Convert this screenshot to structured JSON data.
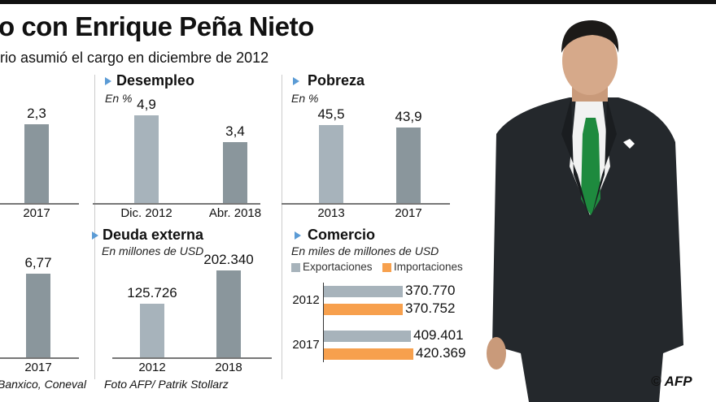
{
  "header": {
    "title": "o con Enrique Peña Nieto",
    "subtitle": "rio asumió el cargo en diciembre de 2012"
  },
  "colors": {
    "bar_light": "#a7b3bb",
    "bar_dark": "#8a969c",
    "export": "#a7b3bb",
    "import": "#f7a04d",
    "triangle": "#5b9bd5"
  },
  "chart_data": [
    {
      "id": "clipped-top",
      "type": "bar",
      "title": "",
      "categories": [
        "2017"
      ],
      "values": [
        2.3
      ],
      "labels": [
        "2,3"
      ],
      "ylim": [
        0,
        2.6
      ]
    },
    {
      "id": "desempleo",
      "type": "bar",
      "title": "Desempleo",
      "unit": "En %",
      "categories": [
        "Dic. 2012",
        "Abr. 2018"
      ],
      "values": [
        4.9,
        3.4
      ],
      "labels": [
        "4,9",
        "3,4"
      ],
      "ylim": [
        0,
        5
      ]
    },
    {
      "id": "pobreza",
      "type": "bar",
      "title": "Pobreza",
      "unit": "En %",
      "categories": [
        "2013",
        "2017"
      ],
      "values": [
        45.5,
        43.9
      ],
      "labels": [
        "45,5",
        "43,9"
      ],
      "ylim": [
        0,
        52
      ]
    },
    {
      "id": "clipped-bottom",
      "type": "bar",
      "title": "",
      "categories": [
        "2017"
      ],
      "values": [
        6.77
      ],
      "labels": [
        "6,77"
      ],
      "ylim": [
        0,
        7.2
      ]
    },
    {
      "id": "deuda",
      "type": "bar",
      "title": "Deuda externa",
      "unit": "En millones de USD",
      "categories": [
        "2012",
        "2018"
      ],
      "values": [
        125726,
        202340
      ],
      "labels": [
        "125.726",
        "202.340"
      ],
      "ylim": [
        0,
        208000
      ]
    },
    {
      "id": "comercio",
      "type": "bar",
      "orientation": "horizontal",
      "title": "Comercio",
      "unit": "En miles de millones de USD",
      "categories": [
        "2012",
        "2017"
      ],
      "series": [
        {
          "name": "Exportaciones",
          "values": [
            370.77,
            409.401
          ],
          "labels": [
            "370.770",
            "409.401"
          ]
        },
        {
          "name": "Importaciones",
          "values": [
            370.752,
            420.369
          ],
          "labels": [
            "370.752",
            "420.369"
          ]
        }
      ],
      "xlim": [
        0,
        420.369
      ]
    }
  ],
  "footer": {
    "source": "Banxico, Coneval",
    "photo_credit": "Foto AFP/ Patrik Stollarz",
    "logo": "© AFP"
  }
}
